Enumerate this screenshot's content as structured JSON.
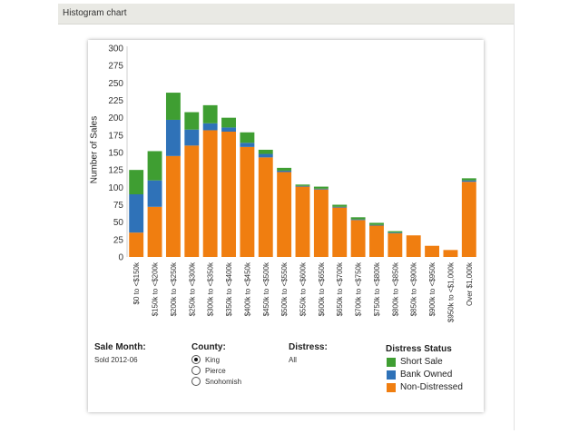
{
  "header": {
    "title": "Histogram chart"
  },
  "chart_data": {
    "type": "bar",
    "stacked": true,
    "ylabel": "Number of Sales",
    "ylim": [
      0,
      300
    ],
    "yticks": [
      0,
      25,
      50,
      75,
      100,
      125,
      150,
      175,
      200,
      225,
      250,
      275,
      300
    ],
    "grid": false,
    "categories": [
      "$0 to <$150k",
      "$150k to <$200k",
      "$200k to <$250k",
      "$250k to <$300k",
      "$300k to <$350k",
      "$350k to <$400k",
      "$400k to <$450k",
      "$450k to <$500k",
      "$500k to <$550k",
      "$550k to <$600k",
      "$600k to <$650k",
      "$650k to <$700k",
      "$700k to <$750k",
      "$750k to <$800k",
      "$800k to <$850k",
      "$850k to <$900k",
      "$900k to <$950k",
      "$950k to <$1,000k",
      "Over $1,000k"
    ],
    "series": [
      {
        "name": "Non-Distressed",
        "color": "#f07e10",
        "values": [
          35,
          72,
          145,
          160,
          182,
          180,
          158,
          143,
          122,
          101,
          97,
          71,
          53,
          45,
          34,
          31,
          16,
          10,
          108
        ]
      },
      {
        "name": "Bank Owned",
        "color": "#2f72b8",
        "values": [
          55,
          38,
          52,
          23,
          10,
          6,
          6,
          5,
          2,
          1,
          1,
          1,
          1,
          1,
          1,
          0,
          0,
          0,
          2
        ]
      },
      {
        "name": "Short Sale",
        "color": "#3f9e32",
        "values": [
          35,
          42,
          39,
          25,
          26,
          14,
          15,
          6,
          4,
          2,
          3,
          3,
          3,
          3,
          2,
          0,
          0,
          0,
          3
        ]
      }
    ],
    "legend_position": "bottom-right"
  },
  "filters": {
    "sale_month": {
      "title": "Sale Month:",
      "value": "Sold 2012-06"
    },
    "county": {
      "title": "County:",
      "options": [
        {
          "label": "King",
          "selected": true
        },
        {
          "label": "Pierce",
          "selected": false
        },
        {
          "label": "Snohomish",
          "selected": false
        }
      ]
    },
    "distress": {
      "title": "Distress:",
      "value": "All"
    }
  },
  "legend": {
    "title": "Distress Status",
    "items": [
      {
        "label": "Short Sale",
        "color": "#3f9e32"
      },
      {
        "label": "Bank Owned",
        "color": "#2f72b8"
      },
      {
        "label": "Non-Distressed",
        "color": "#f07e10"
      }
    ]
  }
}
